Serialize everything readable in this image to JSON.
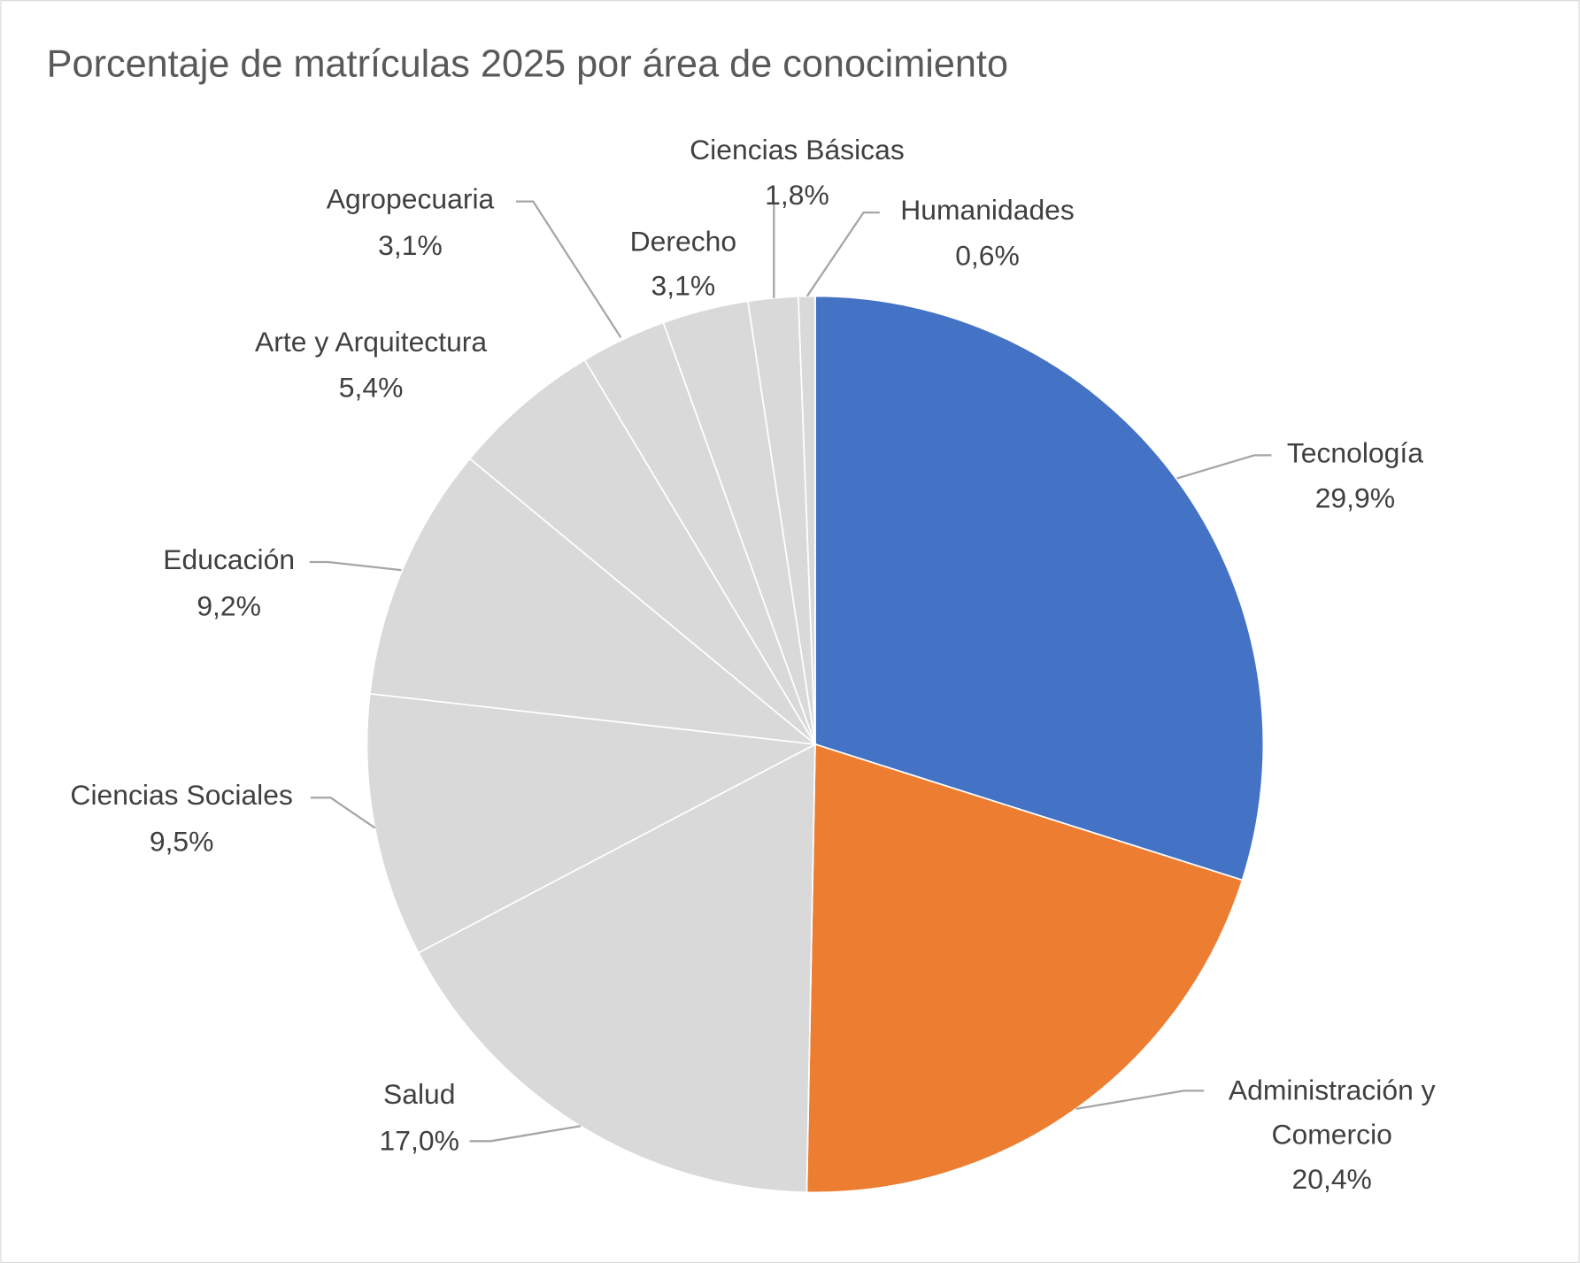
{
  "chart_data": {
    "type": "pie",
    "title": "Porcentaje de matrículas 2025 por área de conocimiento",
    "slices": [
      {
        "label": "Tecnología",
        "value": 29.9,
        "value_label": "29,9%",
        "color": "#4472C4"
      },
      {
        "label": "Administración y Comercio",
        "label_lines": [
          "Administración y",
          "Comercio"
        ],
        "value": 20.4,
        "value_label": "20,4%",
        "color": "#ED7D31"
      },
      {
        "label": "Salud",
        "value": 17.0,
        "value_label": "17,0%",
        "color": "#D9D9D9"
      },
      {
        "label": "Ciencias Sociales",
        "value": 9.5,
        "value_label": "9,5%",
        "color": "#D9D9D9"
      },
      {
        "label": "Educación",
        "value": 9.2,
        "value_label": "9,2%",
        "color": "#D9D9D9"
      },
      {
        "label": "Arte y Arquitectura",
        "value": 5.4,
        "value_label": "5,4%",
        "color": "#D9D9D9"
      },
      {
        "label": "Agropecuaria",
        "value": 3.1,
        "value_label": "3,1%",
        "color": "#D9D9D9"
      },
      {
        "label": "Derecho",
        "value": 3.1,
        "value_label": "3,1%",
        "color": "#D9D9D9"
      },
      {
        "label": "Ciencias Básicas",
        "value": 1.8,
        "value_label": "1,8%",
        "color": "#D9D9D9"
      },
      {
        "label": "Humanidades",
        "value": 0.6,
        "value_label": "0,6%",
        "color": "#D9D9D9"
      }
    ],
    "legend": "none",
    "data_labels": "outside with leader lines"
  }
}
